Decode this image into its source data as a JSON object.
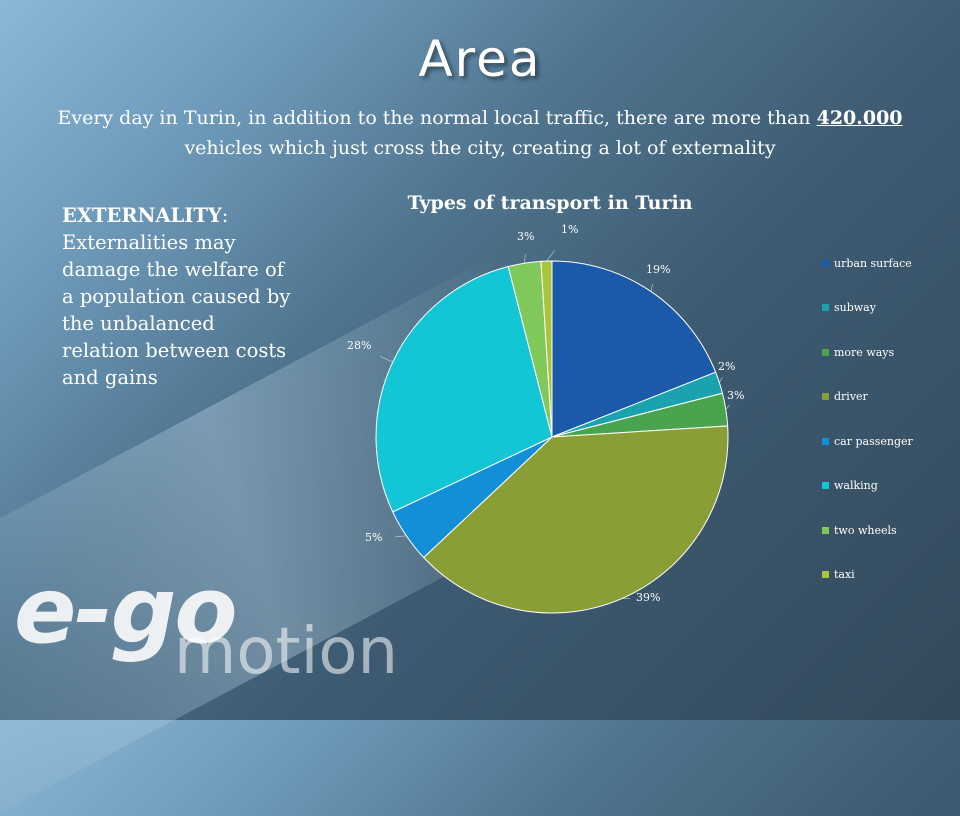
{
  "slide": {
    "title": "Area",
    "intro_before": "Every day in Turin, in addition to the normal local traffic, there are more than ",
    "intro_highlight": "420.000",
    "intro_after": " vehicles which just cross the city, creating a lot of externality",
    "note_heading": "EXTERNALITY",
    "note_colon": ":",
    "note_body": " Externalities may damage the welfare of a population caused by the unbalanced relation between costs and gains"
  },
  "logo": {
    "main": "e-go",
    "sub": "motion"
  },
  "chart_data": {
    "type": "pie",
    "title": "Types of transport in Turin",
    "legend_position": "right",
    "slices": [
      {
        "name": "urban surface",
        "value": 19,
        "label": "19%",
        "color": "#1a5aa8"
      },
      {
        "name": "subway",
        "value": 2,
        "label": "2%",
        "color": "#1aa3ae"
      },
      {
        "name": "more ways",
        "value": 3,
        "label": "3%",
        "color": "#4aa34e"
      },
      {
        "name": "driver",
        "value": 39,
        "label": "39%",
        "color": "#8a9e36"
      },
      {
        "name": "car passenger",
        "value": 5,
        "label": "5%",
        "color": "#128fd6"
      },
      {
        "name": "walking",
        "value": 28,
        "label": "28%",
        "color": "#13c6d6"
      },
      {
        "name": "two wheels",
        "value": 3,
        "label": "3%",
        "color": "#7fc859"
      },
      {
        "name": "taxi",
        "value": 1,
        "label": "1%",
        "color": "#a9c43c"
      }
    ]
  }
}
